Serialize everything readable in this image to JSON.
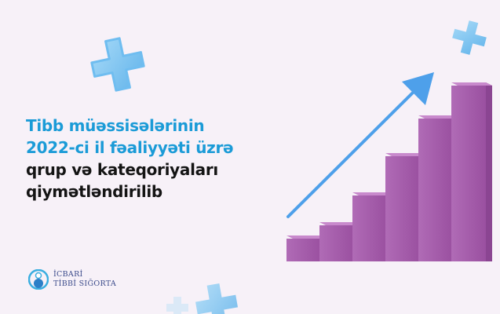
{
  "headline": {
    "lines": [
      "Tibb müəssisələrinin",
      "2022-ci il fəaliyyəti üzrə",
      "qrup və kateqoriyaları",
      "qiymətləndirilib"
    ]
  },
  "logo": {
    "line1": "İCBARİ",
    "line2": "TİBBİ SIĞORTA"
  },
  "colors": {
    "headline_accent": "#1b9bd7",
    "headline_text": "#141414",
    "bars": "#a45aa9",
    "arrow": "#4ea0ea",
    "cross": "#8ecbf2"
  },
  "illustration": {
    "type": "rising bar graphic with upward arrow",
    "bar_count": 6,
    "decorations": [
      "medical-cross-icon",
      "medical-cross-icon",
      "medical-cross-icon"
    ]
  }
}
